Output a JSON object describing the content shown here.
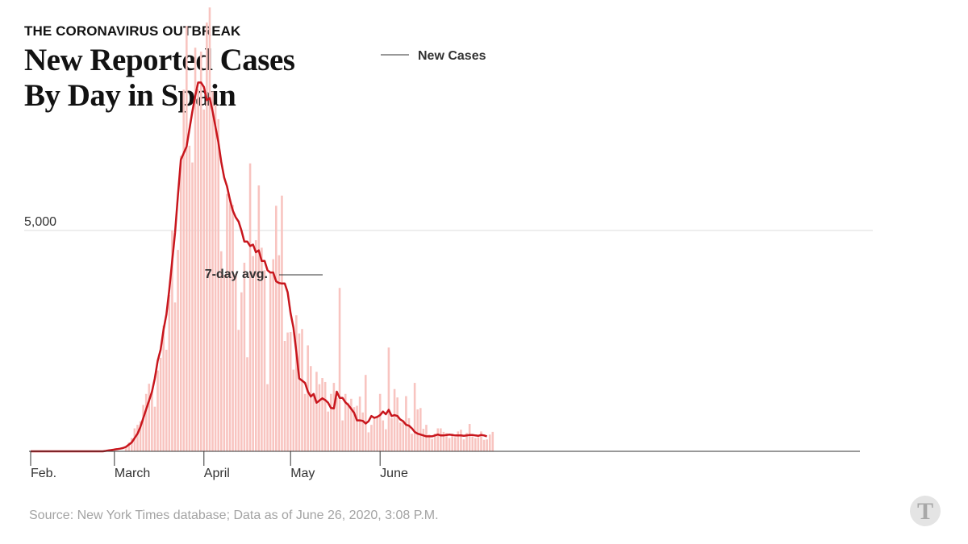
{
  "header": {
    "kicker": "THE CORONAVIRUS OUTBREAK",
    "title": "New Reported Cases By Day in Spain"
  },
  "footer": {
    "source": "Source: New York Times database; Data as of June 26, 2020, 3:08 P.M."
  },
  "logo": {
    "icon": "nyt-t-logo-icon",
    "label": "T"
  },
  "colors": {
    "bar": "#f8c4c0",
    "line": "#c8161d",
    "grid": "#dddddd",
    "axis": "#333333"
  },
  "chart_data": {
    "type": "bar",
    "title": "New Reported Cases By Day in Spain",
    "start_date": "2020-02-01",
    "x_ticks": [
      {
        "label": "Feb.",
        "day_index": 0
      },
      {
        "label": "March",
        "day_index": 29
      },
      {
        "label": "April",
        "day_index": 60
      },
      {
        "label": "May",
        "day_index": 90
      },
      {
        "label": "June",
        "day_index": 121
      }
    ],
    "y_ticks": [
      {
        "label": "5,000",
        "value": 5000
      }
    ],
    "ylim": [
      0,
      10000
    ],
    "grid": true,
    "series": [
      {
        "name": "New Cases",
        "kind": "bar",
        "start_index": 33,
        "values": [
          100,
          200,
          300,
          520,
          600,
          680,
          1050,
          1300,
          1530,
          1370,
          1010,
          1830,
          2120,
          2850,
          2300,
          3540,
          5000,
          3370,
          4560,
          6690,
          8190,
          9630,
          6920,
          6540,
          9140,
          8200,
          9050,
          7740,
          9710,
          10050,
          8150,
          7850,
          7520,
          4530,
          4000,
          5830,
          5700,
          5580,
          4020,
          2750,
          3600,
          4270,
          2130,
          6520,
          4420,
          4780,
          6020,
          4610,
          4100,
          1520,
          4070,
          4350,
          5560,
          4440,
          5790,
          2500,
          2690,
          2700,
          1850,
          3080,
          2670,
          2770,
          1300,
          2400,
          1930,
          1300,
          1800,
          1520,
          1660,
          1570,
          900,
          1300,
          1550,
          1210,
          3700,
          700,
          1300,
          1100,
          1190,
          1000,
          1030,
          1240,
          880,
          1730,
          430,
          600,
          760,
          800,
          1300,
          700,
          500,
          2350,
          750,
          1410,
          1220,
          650,
          700,
          1250,
          750,
          400,
          1550,
          950,
          980,
          510,
          600,
          380,
          280,
          400,
          520,
          520,
          440,
          410,
          300,
          400,
          320,
          450,
          490,
          270,
          420,
          620,
          340,
          300,
          320,
          450,
          260,
          270,
          380,
          440
        ]
      },
      {
        "name": "7-day avg.",
        "kind": "line",
        "start_index": 0,
        "values": [
          0,
          0,
          0,
          0,
          0,
          0,
          0,
          0,
          0,
          0,
          0,
          0,
          0,
          0,
          0,
          0,
          0,
          0,
          0,
          0,
          0,
          0,
          0,
          0,
          0,
          0,
          10,
          20,
          30,
          40,
          50,
          60,
          75,
          100,
          150,
          200,
          300,
          400,
          550,
          750,
          950,
          1150,
          1350,
          1650,
          2050,
          2300,
          2750,
          3100,
          3650,
          4300,
          4950,
          5800,
          6600,
          6750,
          6900,
          7300,
          7700,
          8050,
          8350,
          8350,
          8250,
          7950,
          8000,
          7700,
          7350,
          7000,
          6550,
          6200,
          6000,
          5700,
          5450,
          5300,
          5200,
          5000,
          4750,
          4750,
          4650,
          4680,
          4510,
          4550,
          4310,
          4310,
          4100,
          4050,
          4050,
          3850,
          3810,
          3800,
          3800,
          3600,
          3130,
          2800,
          2250,
          1650,
          1600,
          1550,
          1350,
          1240,
          1300,
          1100,
          1150,
          1200,
          1160,
          1100,
          980,
          970,
          1350,
          1210,
          1210,
          1110,
          1050,
          960,
          870,
          700,
          700,
          690,
          630,
          680,
          800,
          760,
          780,
          820,
          900,
          840,
          940,
          800,
          820,
          800,
          720,
          680,
          600,
          580,
          520,
          440,
          400,
          380,
          360,
          340,
          340,
          340,
          360,
          380,
          360,
          360,
          370,
          380,
          370,
          360,
          360,
          360,
          350,
          360,
          370,
          370,
          360,
          350,
          370,
          360,
          340
        ]
      }
    ],
    "annotations": [
      {
        "text": "New Cases",
        "target": "bars"
      },
      {
        "text": "7-day avg.",
        "target": "line"
      }
    ]
  }
}
